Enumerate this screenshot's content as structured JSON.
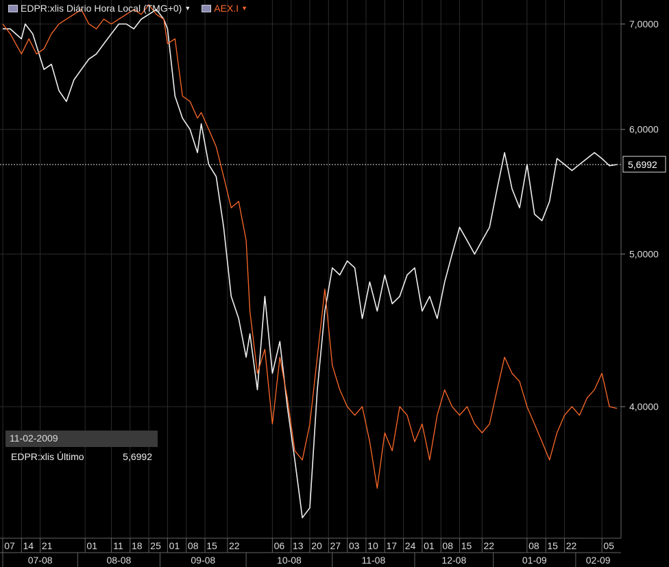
{
  "legend": {
    "series1": "EDPR:xlis Diário Hora Local (TMG+0)",
    "series2": "AEX.I"
  },
  "colors": {
    "series1": "#f0f0f0",
    "series2": "#ff6a2a",
    "grid": "#2c2c2c",
    "background": "#000000"
  },
  "infobox": {
    "date": "11-02-2009",
    "label": "EDPR:xlis Último",
    "value": "5,6992"
  },
  "last_value_label": "5,6992",
  "chart_data": {
    "type": "line",
    "title": "",
    "yscale": "log",
    "ylim": [
      3.3,
      7.25
    ],
    "y_ticks": [
      {
        "v": 7.0,
        "label": "7,0000"
      },
      {
        "v": 6.0,
        "label": "6,0000"
      },
      {
        "v": 5.0,
        "label": "5,0000"
      },
      {
        "v": 4.0,
        "label": "4,0000"
      }
    ],
    "last_value": 5.6992,
    "x_day_labels": [
      "07",
      "14",
      "21",
      "01",
      "11",
      "18",
      "25",
      "01",
      "08",
      "15",
      "22",
      "06",
      "13",
      "20",
      "27",
      "03",
      "10",
      "17",
      "24",
      "01",
      "08",
      "15",
      "22",
      "08",
      "15",
      "22",
      "05"
    ],
    "x_day_idx": [
      0,
      5,
      10,
      22,
      29,
      34,
      39,
      44,
      49,
      54,
      60,
      72,
      77,
      82,
      87,
      92,
      97,
      102,
      107,
      112,
      117,
      122,
      128,
      140,
      145,
      150,
      160
    ],
    "months": [
      {
        "label": "07-08",
        "start": 0,
        "end": 20
      },
      {
        "label": "08-08",
        "start": 20,
        "end": 42
      },
      {
        "label": "09-08",
        "start": 42,
        "end": 65
      },
      {
        "label": "10-08",
        "start": 65,
        "end": 88
      },
      {
        "label": "11-08",
        "start": 88,
        "end": 110
      },
      {
        "label": "12-08",
        "start": 110,
        "end": 131
      },
      {
        "label": "01-09",
        "start": 131,
        "end": 153
      },
      {
        "label": "02-09",
        "start": 153,
        "end": 165
      }
    ],
    "n_points": 165,
    "series": [
      {
        "name": "EDPR:xlis",
        "x": [
          0,
          2,
          5,
          6,
          8,
          11,
          13,
          15,
          17,
          19,
          21,
          23,
          25,
          27,
          29,
          31,
          33,
          35,
          37,
          39,
          41,
          43,
          44,
          46,
          48,
          50,
          52,
          53,
          55,
          57,
          59,
          61,
          63,
          65,
          66,
          68,
          70,
          72,
          74,
          76,
          78,
          80,
          82,
          84,
          86,
          88,
          90,
          92,
          94,
          96,
          98,
          100,
          102,
          104,
          106,
          108,
          110,
          112,
          114,
          116,
          118,
          120,
          122,
          124,
          126,
          128,
          130,
          132,
          134,
          136,
          138,
          140,
          142,
          144,
          146,
          148,
          150,
          152,
          154,
          156,
          158,
          160,
          162,
          164
        ],
        "values": [
          6.95,
          6.95,
          6.85,
          7.0,
          6.9,
          6.55,
          6.6,
          6.35,
          6.25,
          6.45,
          6.55,
          6.65,
          6.7,
          6.8,
          6.9,
          7.0,
          7.0,
          6.95,
          7.05,
          7.1,
          7.15,
          7.05,
          6.95,
          6.3,
          6.1,
          6.0,
          5.8,
          6.05,
          5.7,
          5.6,
          5.2,
          4.7,
          4.55,
          4.3,
          4.45,
          4.1,
          4.7,
          4.2,
          4.4,
          4.0,
          3.7,
          3.4,
          3.45,
          4.1,
          4.6,
          4.9,
          4.85,
          4.95,
          4.9,
          4.55,
          4.8,
          4.6,
          4.85,
          4.65,
          4.7,
          4.85,
          4.9,
          4.6,
          4.7,
          4.55,
          4.8,
          5.0,
          5.2,
          5.1,
          5.0,
          5.1,
          5.2,
          5.5,
          5.8,
          5.5,
          5.35,
          5.7,
          5.3,
          5.25,
          5.4,
          5.75,
          5.7,
          5.65,
          5.7,
          5.75,
          5.8,
          5.75,
          5.69,
          5.6992
        ]
      },
      {
        "name": "AEX.I",
        "x": [
          0,
          2,
          5,
          7,
          9,
          11,
          13,
          15,
          17,
          19,
          21,
          23,
          25,
          27,
          29,
          31,
          33,
          35,
          37,
          39,
          41,
          43,
          44,
          46,
          48,
          50,
          52,
          53,
          55,
          57,
          59,
          61,
          63,
          65,
          66,
          68,
          70,
          72,
          74,
          76,
          78,
          80,
          82,
          84,
          86,
          88,
          90,
          92,
          94,
          96,
          98,
          100,
          102,
          104,
          106,
          108,
          110,
          112,
          114,
          116,
          118,
          120,
          122,
          124,
          126,
          128,
          130,
          132,
          134,
          136,
          138,
          140,
          142,
          144,
          146,
          148,
          150,
          152,
          154,
          156,
          158,
          160,
          162,
          164
        ],
        "values": [
          7.0,
          6.9,
          6.7,
          6.85,
          6.7,
          6.75,
          6.9,
          7.0,
          7.05,
          7.1,
          7.15,
          7.0,
          6.95,
          7.05,
          7.0,
          7.05,
          7.1,
          7.15,
          7.1,
          7.2,
          7.1,
          7.05,
          6.8,
          6.85,
          6.3,
          6.25,
          6.1,
          6.15,
          6.0,
          5.85,
          5.6,
          5.35,
          5.4,
          5.1,
          4.6,
          4.2,
          4.35,
          3.9,
          4.3,
          4.05,
          3.75,
          3.7,
          3.9,
          4.3,
          4.75,
          4.25,
          4.1,
          4.0,
          3.95,
          4.0,
          3.8,
          3.55,
          3.85,
          3.75,
          4.0,
          3.95,
          3.8,
          3.9,
          3.7,
          3.95,
          4.1,
          4.0,
          3.95,
          4.0,
          3.9,
          3.85,
          3.9,
          4.1,
          4.3,
          4.2,
          4.15,
          4.0,
          3.9,
          3.8,
          3.7,
          3.85,
          3.95,
          4.0,
          3.95,
          4.05,
          4.1,
          4.2,
          4.0,
          3.99
        ]
      }
    ]
  }
}
